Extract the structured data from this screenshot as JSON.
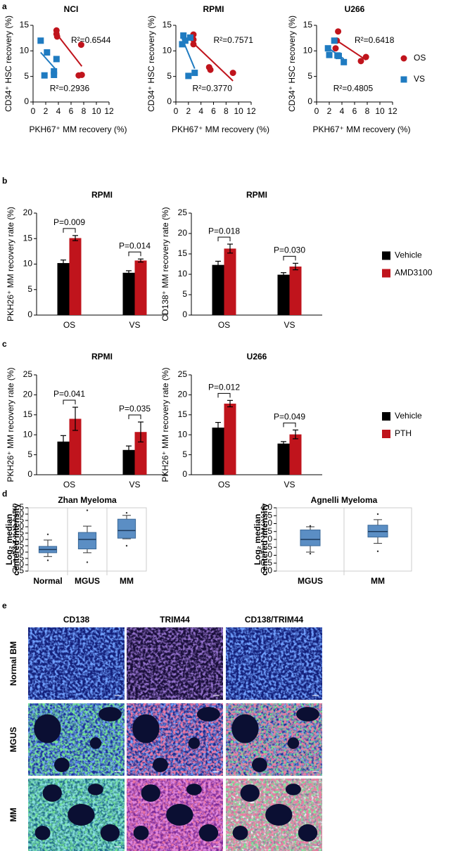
{
  "panel_labels": [
    "a",
    "b",
    "c",
    "d",
    "e"
  ],
  "chart_data": [
    {
      "type": "scatter",
      "title": "NCI",
      "x_label": "PKH67⁺ MM recovery (%)",
      "y_label": "CD34⁺ HSC recovery (%)",
      "xlim": [
        0,
        12
      ],
      "xticks": [
        0,
        2,
        4,
        6,
        8,
        10,
        12
      ],
      "ylim": [
        0,
        15
      ],
      "yticks": [
        0,
        5,
        10,
        15
      ],
      "trendline": true,
      "series": [
        {
          "color": "#c0141c",
          "marker": "circle",
          "annotation": "R²=0.6544",
          "x": [
            3.7,
            3.7,
            3.8,
            7.6,
            7.2,
            7.7
          ],
          "values": [
            14.0,
            13.3,
            12.8,
            11.2,
            5.2,
            5.3
          ]
        },
        {
          "color": "#1f7bc1",
          "marker": "square",
          "annotation": "R²=0.2936",
          "x": [
            1.2,
            2.2,
            3.7,
            3.3,
            3.3,
            1.8
          ],
          "values": [
            12.0,
            9.7,
            8.4,
            6.0,
            5.3,
            5.2
          ]
        }
      ]
    },
    {
      "type": "scatter",
      "title": "RPMI",
      "x_label": "PKH67⁺ MM recovery (%)",
      "y_label": "CD34⁺ HSC recovery (%)",
      "xlim": [
        0,
        12
      ],
      "xticks": [
        0,
        2,
        4,
        6,
        8,
        10,
        12
      ],
      "ylim": [
        0,
        15
      ],
      "yticks": [
        0,
        5,
        10,
        15
      ],
      "trendline": true,
      "series": [
        {
          "color": "#c0141c",
          "marker": "circle",
          "annotation": "R²=0.7571",
          "x": [
            2.8,
            2.8,
            2.8,
            5.3,
            5.5,
            9.1
          ],
          "values": [
            13.2,
            12.2,
            11.3,
            6.8,
            6.3,
            5.7
          ]
        },
        {
          "color": "#1f7bc1",
          "marker": "square",
          "annotation": "R²=0.3770",
          "x": [
            1.2,
            1.5,
            2.3,
            1.0,
            2.0,
            3.0
          ],
          "values": [
            13.0,
            12.0,
            12.6,
            11.3,
            5.1,
            5.7
          ]
        }
      ]
    },
    {
      "type": "scatter",
      "title": "U266",
      "x_label": "PKH67⁺ MM recovery (%)",
      "y_label": "CD34⁺ HSC recovery (%)",
      "xlim": [
        0,
        12
      ],
      "xticks": [
        0,
        2,
        4,
        6,
        8,
        10,
        12
      ],
      "ylim": [
        0,
        15
      ],
      "yticks": [
        0,
        5,
        10,
        15
      ],
      "trendline": true,
      "legend": "right",
      "series": [
        {
          "name": "OS",
          "color": "#c0141c",
          "marker": "circle",
          "annotation": "R²=0.6418",
          "x": [
            3.4,
            3.2,
            3.0,
            7.0,
            7.8
          ],
          "values": [
            13.8,
            12.0,
            10.5,
            8.0,
            8.8
          ]
        },
        {
          "name": "VS",
          "color": "#1f7bc1",
          "marker": "square",
          "annotation": "R²=0.4805",
          "x": [
            1.8,
            2.0,
            2.8,
            3.3,
            3.5,
            4.3
          ],
          "values": [
            10.5,
            9.2,
            12.0,
            9.1,
            9.0,
            7.8
          ]
        }
      ]
    },
    {
      "type": "bar",
      "title": "RPMI",
      "y_label": "PKH26⁺ MM recovery rate (%)",
      "categories": [
        "OS",
        "VS"
      ],
      "ylim": [
        0,
        20
      ],
      "yticks": [
        0,
        5,
        10,
        15,
        20
      ],
      "annotations": [
        "P=0.009",
        "P=0.014"
      ],
      "series": [
        {
          "color": "#000000",
          "values": [
            10.2,
            8.3
          ],
          "errors": [
            0.6,
            0.4
          ]
        },
        {
          "color": "#c0141c",
          "values": [
            15.1,
            10.7
          ],
          "errors": [
            0.5,
            0.3
          ]
        }
      ]
    },
    {
      "type": "bar",
      "title": "RPMI",
      "y_label": "CD138⁺ MM recovery rate (%)",
      "categories": [
        "OS",
        "VS"
      ],
      "ylim": [
        0,
        25
      ],
      "yticks": [
        0,
        5,
        10,
        15,
        20,
        25
      ],
      "annotations": [
        "P=0.018",
        "P=0.030"
      ],
      "legend": "right",
      "series": [
        {
          "name": "Vehicle",
          "color": "#000000",
          "values": [
            12.3,
            9.9
          ],
          "errors": [
            0.9,
            0.5
          ]
        },
        {
          "name": "AMD3100",
          "color": "#c0141c",
          "values": [
            16.3,
            11.9
          ],
          "errors": [
            1.1,
            0.8
          ]
        }
      ]
    },
    {
      "type": "bar",
      "title": "RPMI",
      "y_label": "PKH26⁺ MM recovery rate (%)",
      "categories": [
        "OS",
        "VS"
      ],
      "ylim": [
        0,
        25
      ],
      "yticks": [
        0,
        5,
        10,
        15,
        20,
        25
      ],
      "annotations": [
        "P=0.041",
        "P=0.035"
      ],
      "series": [
        {
          "color": "#000000",
          "values": [
            8.3,
            6.2
          ],
          "errors": [
            1.5,
            1.0
          ]
        },
        {
          "color": "#c0141c",
          "values": [
            14.0,
            10.7
          ],
          "errors": [
            2.9,
            2.5
          ]
        }
      ]
    },
    {
      "type": "bar",
      "title": "U266",
      "y_label": "PKH26⁺ MM recovery rate (%)",
      "categories": [
        "OS",
        "VS"
      ],
      "ylim": [
        0,
        25
      ],
      "yticks": [
        0,
        5,
        10,
        15,
        20,
        25
      ],
      "annotations": [
        "P=0.012",
        "P=0.049"
      ],
      "legend": "right",
      "series": [
        {
          "name": "Vehicle",
          "color": "#000000",
          "values": [
            11.8,
            7.8
          ],
          "errors": [
            1.3,
            0.5
          ]
        },
        {
          "name": "PTH",
          "color": "#c0141c",
          "values": [
            17.8,
            10.1
          ],
          "errors": [
            0.8,
            1.1
          ]
        }
      ]
    },
    {
      "type": "box",
      "title": "Zhan Myeloma",
      "y_label": [
        "Log₂ median",
        "centered intensity"
      ],
      "categories": [
        "Normal",
        "MGUS",
        "MM"
      ],
      "color": "#5b8ec4",
      "ylim": [
        0.5,
        5.5
      ],
      "yticks": [
        0.5,
        {
          "value": 1,
          "label": "1.0"
        },
        1.5,
        {
          "value": 2,
          "label": "2.0"
        },
        2.5,
        {
          "value": 3,
          "label": "3.0"
        },
        3.5,
        {
          "value": 4,
          "label": "4.0"
        },
        4.5,
        {
          "value": 5,
          "label": "5.0"
        },
        5.5
      ],
      "boxes": [
        {
          "min": 1.65,
          "q1": 1.95,
          "median": 2.2,
          "q3": 2.45,
          "max": 2.95,
          "outliers": [
            3.4,
            1.35
          ]
        },
        {
          "min": 1.95,
          "q1": 2.25,
          "median": 3.0,
          "q3": 3.55,
          "max": 4.05,
          "outliers": [
            5.3,
            1.2
          ]
        },
        {
          "min": 3.05,
          "q1": 3.1,
          "median": 3.7,
          "q3": 4.6,
          "max": 4.9,
          "outliers": [
            5.1,
            2.5
          ]
        }
      ]
    },
    {
      "type": "box",
      "title": "Agnelli Myeloma",
      "y_label": [
        "Log₂ median",
        "centered intensity"
      ],
      "categories": [
        "MGUS",
        "MM"
      ],
      "color": "#5b8ec4",
      "ylim": [
        0,
        4
      ],
      "yticks": [
        {
          "value": 0,
          "label": "0.0"
        },
        0.5,
        {
          "value": 1,
          "label": "1.0"
        },
        1.5,
        {
          "value": 2,
          "label": "2.0"
        },
        2.5,
        {
          "value": 3,
          "label": "3.0"
        },
        3.5,
        {
          "value": 4,
          "label": "4.0"
        }
      ],
      "boxes": [
        {
          "min": 1.2,
          "q1": 1.6,
          "median": 2.0,
          "q3": 2.6,
          "max": 2.8,
          "outliers": [
            2.85,
            1.1
          ]
        },
        {
          "min": 1.75,
          "q1": 2.15,
          "median": 2.5,
          "q3": 2.9,
          "max": 3.25,
          "outliers": [
            3.6,
            1.25
          ]
        }
      ]
    }
  ],
  "images": {
    "columns": [
      "CD138",
      "TRIM44",
      "CD138/TRIM44"
    ],
    "rows": [
      "Normal BM",
      "MGUS",
      "MM"
    ]
  }
}
